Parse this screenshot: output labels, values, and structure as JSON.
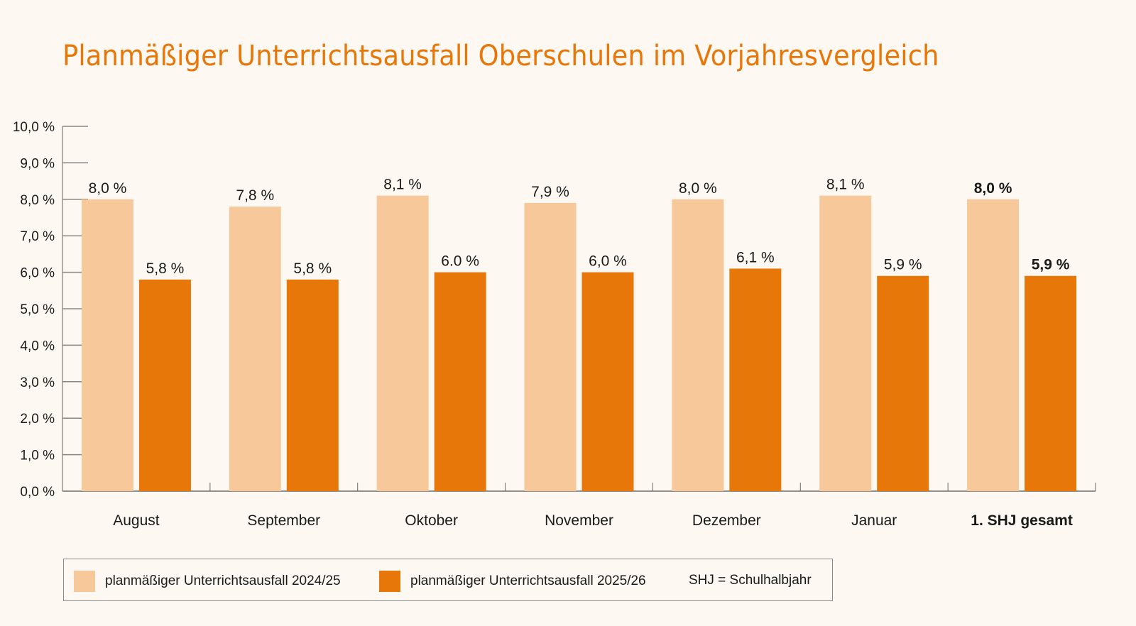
{
  "chart_data": {
    "type": "bar",
    "title": "Planmäßiger Unterrichtsausfall Oberschulen im Vorjahresvergleich",
    "xlabel": "",
    "ylabel": "",
    "ylim": [
      0,
      10
    ],
    "yticks": [
      0,
      1,
      2,
      3,
      4,
      5,
      6,
      7,
      8,
      9,
      10
    ],
    "ytick_labels": [
      "0,0 %",
      "1,0 %",
      "2,0 %",
      "3,0 %",
      "4,0 %",
      "5,0 %",
      "6,0 %",
      "7,0 %",
      "8,0 %",
      "9,0 %",
      "10,0 %"
    ],
    "grid": false,
    "categories": [
      "August",
      "September",
      "Oktober",
      "November",
      "Dezember",
      "Januar",
      "1. SHJ gesamt"
    ],
    "category_bold": [
      false,
      false,
      false,
      false,
      false,
      false,
      true
    ],
    "series": [
      {
        "name": "planmäßiger Unterrichtsausfall 2024/25",
        "color": "#f6c89a",
        "values": [
          8.0,
          7.8,
          8.1,
          7.9,
          8.0,
          8.1,
          8.0
        ],
        "labels": [
          "8,0 %",
          "7,8 %",
          "8,1 %",
          "7,9 %",
          "8,0 %",
          "8,1 %",
          "8,0 %"
        ]
      },
      {
        "name": "planmäßiger Unterrichtsausfall 2025/26",
        "color": "#e8770a",
        "values": [
          5.8,
          5.8,
          6.0,
          6.0,
          6.1,
          5.9,
          5.9
        ],
        "labels": [
          "5,8 %",
          "5,8 %",
          "6.0 %",
          "6,0 %",
          "6,1 %",
          "5,9 %",
          "5,9 %"
        ]
      }
    ],
    "legend_position": "bottom-left",
    "legend_note": "SHJ = Schulhalbjahr"
  }
}
